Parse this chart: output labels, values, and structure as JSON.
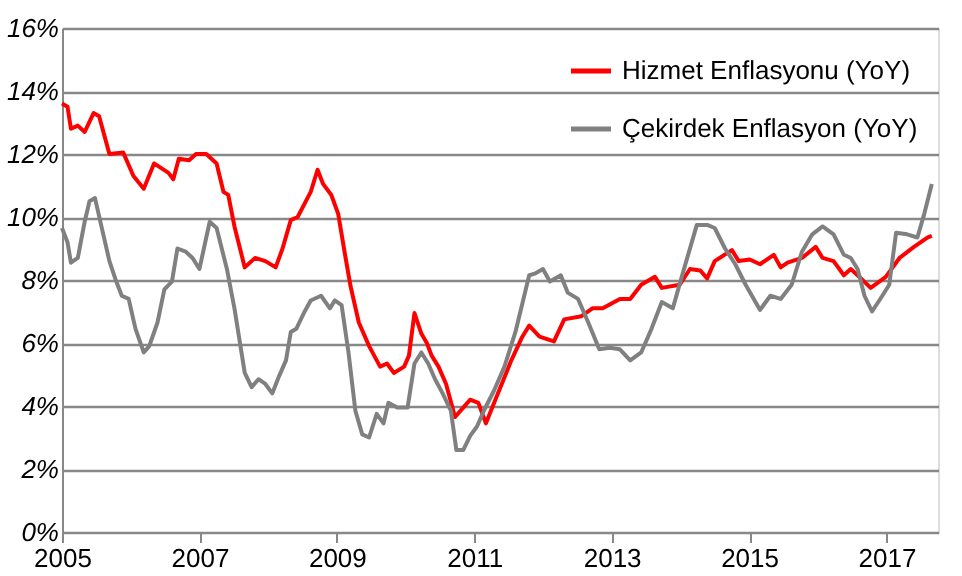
{
  "chart_data": {
    "type": "line",
    "xlim": [
      2005,
      2017.75
    ],
    "xticks": [
      2005,
      2007,
      2009,
      2011,
      2013,
      2015,
      2017
    ],
    "ylim": [
      0,
      16
    ],
    "yticks": [
      {
        "value": 0,
        "label": "0%"
      },
      {
        "value": 2,
        "label": "2%"
      },
      {
        "value": 4,
        "label": "4%"
      },
      {
        "value": 6,
        "label": "6%"
      },
      {
        "value": 8,
        "label": "8%"
      },
      {
        "value": 10,
        "label": "10%"
      },
      {
        "value": 12,
        "label": "12%"
      },
      {
        "value": 14,
        "label": "14%"
      },
      {
        "value": 16,
        "label": "16%"
      }
    ],
    "grid": "y",
    "legend": "top right",
    "marker": "none",
    "line_style": "solid",
    "series": [
      {
        "name": "Hizmet Enflasyonu (YoY)",
        "color": "#ff0000",
        "x": [
          2005.0,
          2005.08,
          2005.13,
          2005.23,
          2005.33,
          2005.46,
          2005.54,
          2005.69,
          2005.89,
          2006.04,
          2006.19,
          2006.34,
          2006.55,
          2006.62,
          2006.7,
          2006.85,
          2006.95,
          2007.1,
          2007.25,
          2007.35,
          2007.42,
          2007.51,
          2007.66,
          2007.81,
          2007.96,
          2008.11,
          2008.21,
          2008.33,
          2008.43,
          2008.62,
          2008.72,
          2008.8,
          2008.92,
          2009.02,
          2009.12,
          2009.2,
          2009.32,
          2009.47,
          2009.63,
          2009.73,
          2009.83,
          2009.98,
          2010.05,
          2010.13,
          2010.23,
          2010.31,
          2010.38,
          2010.48,
          2010.59,
          2010.72,
          2010.84,
          2010.94,
          2011.06,
          2011.17,
          2011.29,
          2011.54,
          2011.7,
          2011.8,
          2011.95,
          2012.16,
          2012.31,
          2012.56,
          2012.72,
          2012.87,
          2013.12,
          2013.27,
          2013.43,
          2013.63,
          2013.73,
          2013.99,
          2014.14,
          2014.29,
          2014.39,
          2014.5,
          2014.75,
          2014.85,
          2015.01,
          2015.16,
          2015.36,
          2015.46,
          2015.56,
          2015.77,
          2015.97,
          2016.07,
          2016.23,
          2016.38,
          2016.48,
          2016.58,
          2016.77,
          2016.99,
          2017.19,
          2017.4,
          2017.6,
          2017.66
        ],
        "values": [
          13.6,
          13.5,
          12.8,
          12.9,
          12.7,
          13.3,
          13.2,
          12.0,
          12.05,
          11.3,
          10.9,
          11.7,
          11.4,
          11.2,
          11.85,
          11.8,
          12.0,
          12.0,
          11.7,
          10.8,
          10.7,
          9.7,
          8.4,
          8.7,
          8.6,
          8.4,
          9.0,
          9.9,
          10.0,
          10.8,
          11.5,
          11.05,
          10.7,
          10.1,
          8.8,
          7.8,
          6.65,
          5.9,
          5.25,
          5.35,
          5.05,
          5.25,
          5.6,
          6.95,
          6.3,
          6.0,
          5.6,
          5.25,
          4.7,
          3.65,
          3.95,
          4.2,
          4.1,
          3.45,
          4.1,
          5.45,
          6.2,
          6.55,
          6.2,
          6.05,
          6.75,
          6.85,
          7.1,
          7.1,
          7.4,
          7.4,
          7.85,
          8.1,
          7.75,
          7.85,
          8.35,
          8.3,
          8.05,
          8.6,
          8.95,
          8.6,
          8.65,
          8.5,
          8.8,
          8.4,
          8.55,
          8.7,
          9.05,
          8.7,
          8.6,
          8.15,
          8.35,
          8.15,
          7.75,
          8.1,
          8.7,
          9.05,
          9.35,
          9.4
        ]
      },
      {
        "name": "Çekirdek Enflasyon (YoY)",
        "color": "#808080",
        "x": [
          2005.0,
          2005.08,
          2005.13,
          2005.23,
          2005.33,
          2005.4,
          2005.48,
          2005.59,
          2005.69,
          2005.79,
          2005.87,
          2005.97,
          2006.07,
          2006.19,
          2006.27,
          2006.39,
          2006.49,
          2006.6,
          2006.68,
          2006.8,
          2006.9,
          2007.0,
          2007.15,
          2007.25,
          2007.4,
          2007.51,
          2007.66,
          2007.76,
          2007.86,
          2007.96,
          2008.06,
          2008.16,
          2008.26,
          2008.33,
          2008.41,
          2008.52,
          2008.62,
          2008.77,
          2008.9,
          2008.97,
          2009.07,
          2009.17,
          2009.27,
          2009.37,
          2009.47,
          2009.58,
          2009.68,
          2009.75,
          2009.88,
          2010.03,
          2010.13,
          2010.23,
          2010.33,
          2010.43,
          2010.54,
          2010.66,
          2010.74,
          2010.84,
          2010.94,
          2011.04,
          2011.14,
          2011.29,
          2011.44,
          2011.6,
          2011.8,
          2011.88,
          2012.0,
          2012.1,
          2012.26,
          2012.36,
          2012.51,
          2012.66,
          2012.82,
          2012.97,
          2013.12,
          2013.27,
          2013.43,
          2013.58,
          2013.73,
          2013.89,
          2014.04,
          2014.24,
          2014.39,
          2014.5,
          2014.65,
          2014.8,
          2014.95,
          2015.16,
          2015.31,
          2015.46,
          2015.62,
          2015.77,
          2015.92,
          2016.07,
          2016.23,
          2016.38,
          2016.48,
          2016.58,
          2016.68,
          2016.79,
          2016.94,
          2017.04,
          2017.14,
          2017.3,
          2017.45,
          2017.55,
          2017.66
        ],
        "values": [
          9.65,
          9.2,
          8.55,
          8.7,
          9.85,
          10.5,
          10.6,
          9.55,
          8.6,
          7.95,
          7.5,
          7.4,
          6.45,
          5.7,
          5.9,
          6.65,
          7.7,
          7.95,
          9.0,
          8.9,
          8.7,
          8.35,
          9.85,
          9.65,
          8.35,
          7.1,
          5.05,
          4.6,
          4.85,
          4.7,
          4.4,
          4.95,
          5.45,
          6.35,
          6.45,
          6.95,
          7.35,
          7.5,
          7.1,
          7.35,
          7.2,
          5.7,
          3.85,
          3.1,
          3.0,
          3.75,
          3.45,
          4.1,
          3.95,
          3.95,
          5.35,
          5.7,
          5.35,
          4.85,
          4.4,
          3.85,
          2.6,
          2.6,
          3.05,
          3.35,
          3.85,
          4.5,
          5.25,
          6.35,
          8.15,
          8.2,
          8.35,
          7.95,
          8.15,
          7.6,
          7.4,
          6.65,
          5.8,
          5.85,
          5.8,
          5.45,
          5.7,
          6.45,
          7.3,
          7.1,
          8.25,
          9.75,
          9.75,
          9.65,
          9.0,
          8.5,
          7.85,
          7.05,
          7.5,
          7.4,
          7.85,
          8.9,
          9.45,
          9.7,
          9.45,
          8.8,
          8.7,
          8.35,
          7.5,
          7.0,
          7.5,
          7.85,
          9.5,
          9.45,
          9.35,
          10.1,
          11.05
        ]
      }
    ]
  }
}
